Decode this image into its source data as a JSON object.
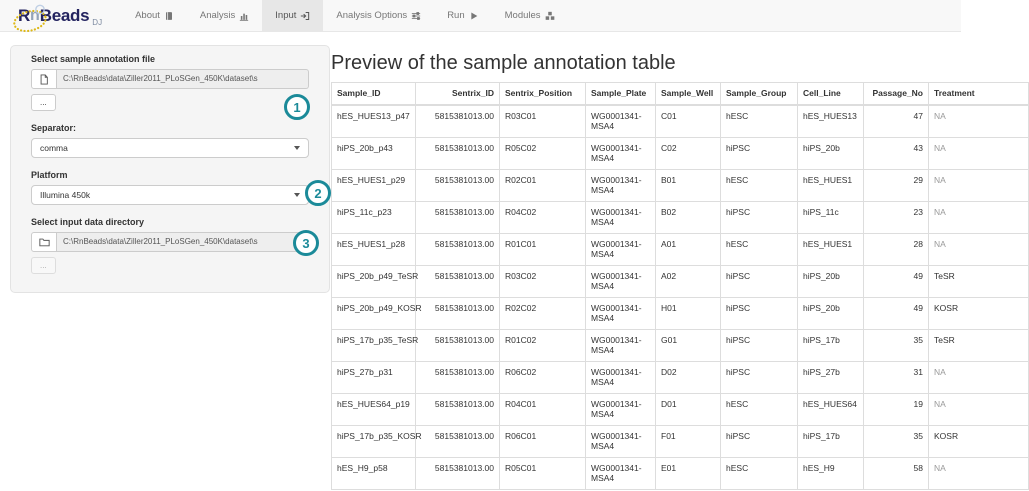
{
  "brand": {
    "r": "R",
    "n": "n",
    "beads": "Beads",
    "suffix": "DJ"
  },
  "nav": {
    "items": [
      {
        "label": "About",
        "icon": "book-icon",
        "active": false
      },
      {
        "label": "Analysis",
        "icon": "bar-chart-icon",
        "active": false
      },
      {
        "label": "Input",
        "icon": "sign-in-icon",
        "active": true
      },
      {
        "label": "Analysis Options",
        "icon": "sliders-icon",
        "active": false
      },
      {
        "label": "Run",
        "icon": "play-icon",
        "active": false
      },
      {
        "label": "Modules",
        "icon": "cubes-icon",
        "active": false
      }
    ]
  },
  "sidebar": {
    "annotation_file": {
      "label": "Select sample annotation file",
      "value": "C:\\RnBeads\\data\\Ziller2011_PLoSGen_450K\\dataset\\s",
      "browse_label": "..."
    },
    "separator": {
      "label": "Separator:",
      "value": "comma"
    },
    "platform": {
      "label": "Platform",
      "value": "Illumina 450k"
    },
    "data_directory": {
      "label": "Select input data directory",
      "value": "C:\\RnBeads\\data\\Ziller2011_PLoSGen_450K\\dataset\\s",
      "browse_label": "..."
    }
  },
  "callouts": [
    "1",
    "2",
    "3"
  ],
  "main": {
    "title": "Preview of the sample annotation table",
    "table": {
      "columns": [
        "Sample_ID",
        "Sentrix_ID",
        "Sentrix_Position",
        "Sample_Plate",
        "Sample_Well",
        "Sample_Group",
        "Cell_Line",
        "Passage_No",
        "Treatment"
      ],
      "numeric_column_indexes": [
        1,
        7
      ],
      "rows": [
        [
          "hES_HUES13_p47",
          "5815381013.00",
          "R03C01",
          "WG0001341-MSA4",
          "C01",
          "hESC",
          "hES_HUES13",
          "47",
          "NA"
        ],
        [
          "hiPS_20b_p43",
          "5815381013.00",
          "R05C02",
          "WG0001341-MSA4",
          "C02",
          "hiPSC",
          "hiPS_20b",
          "43",
          "NA"
        ],
        [
          "hES_HUES1_p29",
          "5815381013.00",
          "R02C01",
          "WG0001341-MSA4",
          "B01",
          "hESC",
          "hES_HUES1",
          "29",
          "NA"
        ],
        [
          "hiPS_11c_p23",
          "5815381013.00",
          "R04C02",
          "WG0001341-MSA4",
          "B02",
          "hiPSC",
          "hiPS_11c",
          "23",
          "NA"
        ],
        [
          "hES_HUES1_p28",
          "5815381013.00",
          "R01C01",
          "WG0001341-MSA4",
          "A01",
          "hESC",
          "hES_HUES1",
          "28",
          "NA"
        ],
        [
          "hiPS_20b_p49_TeSR",
          "5815381013.00",
          "R03C02",
          "WG0001341-MSA4",
          "A02",
          "hiPSC",
          "hiPS_20b",
          "49",
          "TeSR"
        ],
        [
          "hiPS_20b_p49_KOSR",
          "5815381013.00",
          "R02C02",
          "WG0001341-MSA4",
          "H01",
          "hiPSC",
          "hiPS_20b",
          "49",
          "KOSR"
        ],
        [
          "hiPS_17b_p35_TeSR",
          "5815381013.00",
          "R01C02",
          "WG0001341-MSA4",
          "G01",
          "hiPSC",
          "hiPS_17b",
          "35",
          "TeSR"
        ],
        [
          "hiPS_27b_p31",
          "5815381013.00",
          "R06C02",
          "WG0001341-MSA4",
          "D02",
          "hiPSC",
          "hiPS_27b",
          "31",
          "NA"
        ],
        [
          "hES_HUES64_p19",
          "5815381013.00",
          "R04C01",
          "WG0001341-MSA4",
          "D01",
          "hESC",
          "hES_HUES64",
          "19",
          "NA"
        ],
        [
          "hiPS_17b_p35_KOSR",
          "5815381013.00",
          "R06C01",
          "WG0001341-MSA4",
          "F01",
          "hiPSC",
          "hiPS_17b",
          "35",
          "KOSR"
        ],
        [
          "hES_H9_p58",
          "5815381013.00",
          "R05C01",
          "WG0001341-MSA4",
          "E01",
          "hESC",
          "hES_H9",
          "58",
          "NA"
        ]
      ]
    }
  },
  "colors": {
    "accent_teal": "#1b8a99",
    "brand_navy": "#23235f",
    "beads_yellow": "#ddb817",
    "active_tab_bg": "#e7e7e7",
    "navbar_bg": "#f8f8f8",
    "panel_bg": "#f5f5f5",
    "table_border": "#ddd"
  }
}
